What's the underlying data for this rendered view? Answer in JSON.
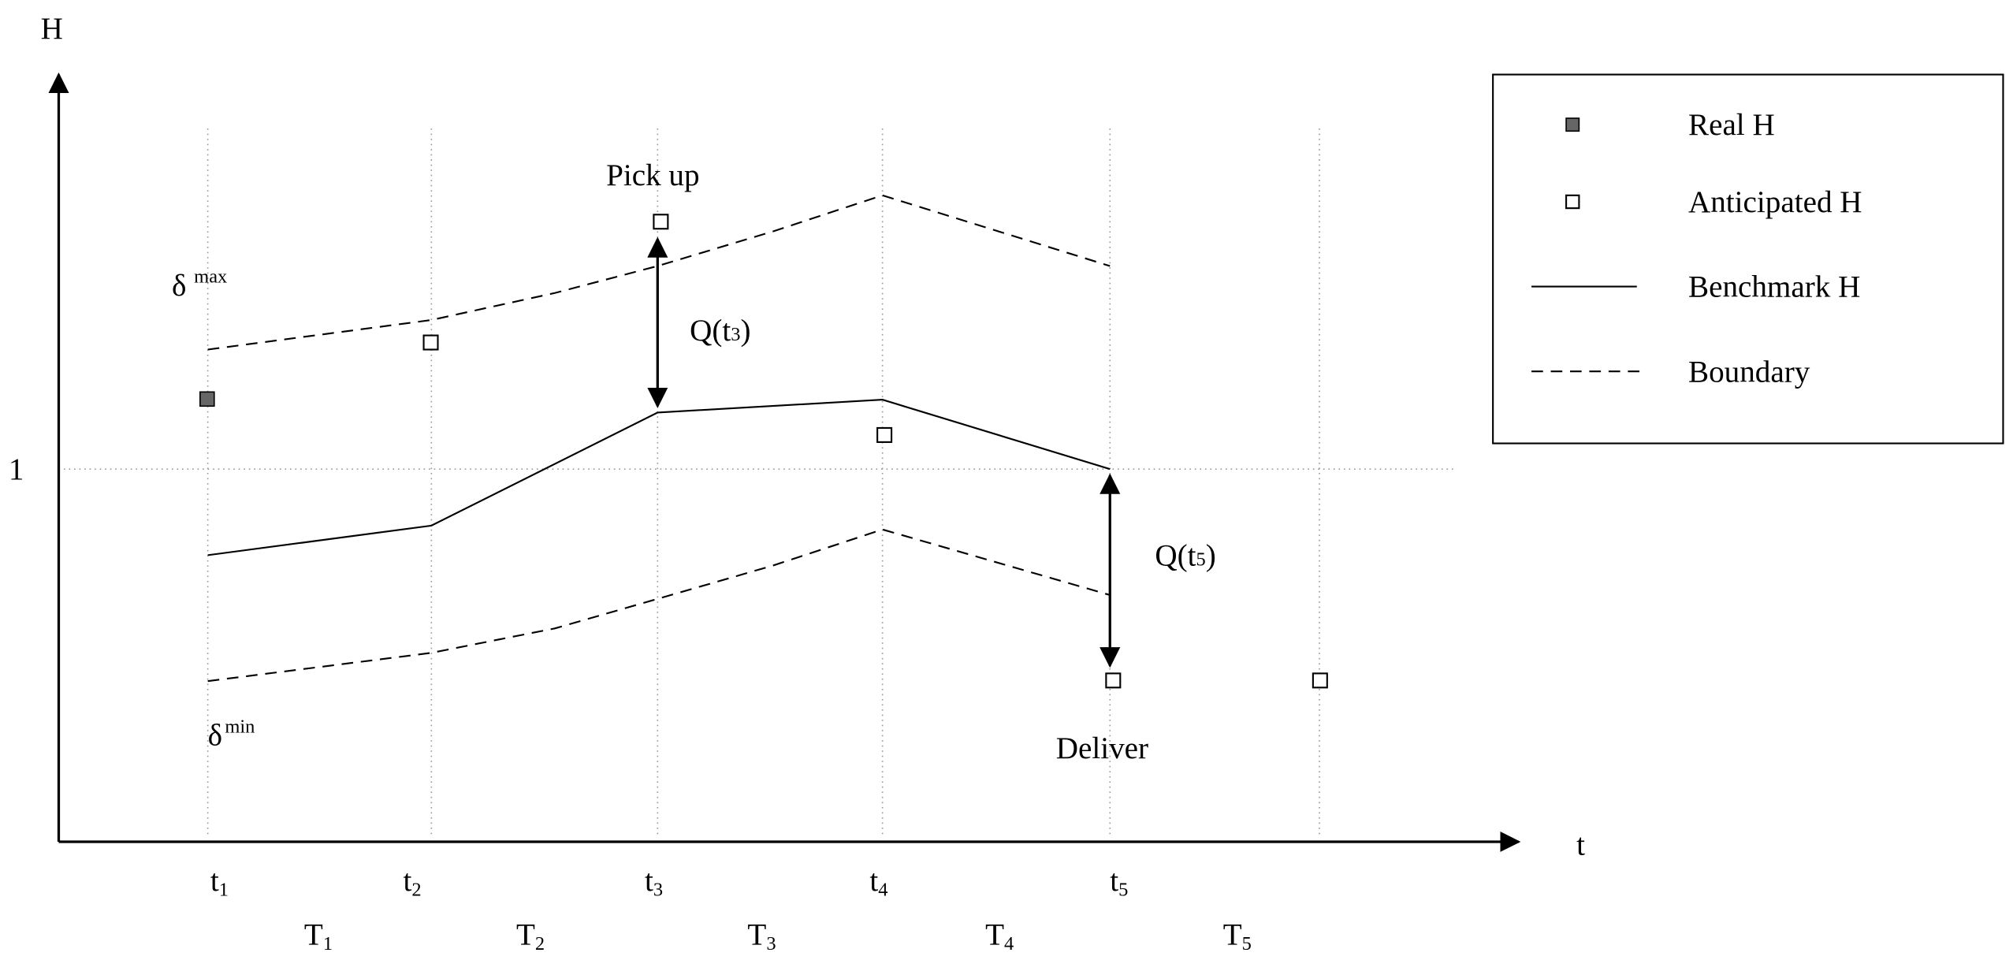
{
  "axes": {
    "y_label": "H",
    "x_label": "t",
    "y_mark": "1"
  },
  "annotations": {
    "pick_up": "Pick up",
    "deliver": "Deliver",
    "q3": {
      "main": "Q(t",
      "sub": "3",
      "end": ")"
    },
    "q5": {
      "main": "Q(t",
      "sub": "5",
      "end": ")"
    },
    "delta_max": {
      "main": "δ",
      "sup": "max"
    },
    "delta_min": {
      "main": "δ",
      "sup": "min"
    }
  },
  "time_points": [
    {
      "main": "t",
      "sub": "1"
    },
    {
      "main": "t",
      "sub": "2"
    },
    {
      "main": "t",
      "sub": "3"
    },
    {
      "main": "t",
      "sub": "4"
    },
    {
      "main": "t",
      "sub": "5"
    }
  ],
  "periods": [
    {
      "main": "T",
      "sub": "1"
    },
    {
      "main": "T",
      "sub": "2"
    },
    {
      "main": "T",
      "sub": "3"
    },
    {
      "main": "T",
      "sub": "4"
    },
    {
      "main": "T",
      "sub": "5"
    }
  ],
  "legend": [
    "Real H",
    "Anticipated H",
    "Benchmark H",
    "Boundary"
  ]
}
